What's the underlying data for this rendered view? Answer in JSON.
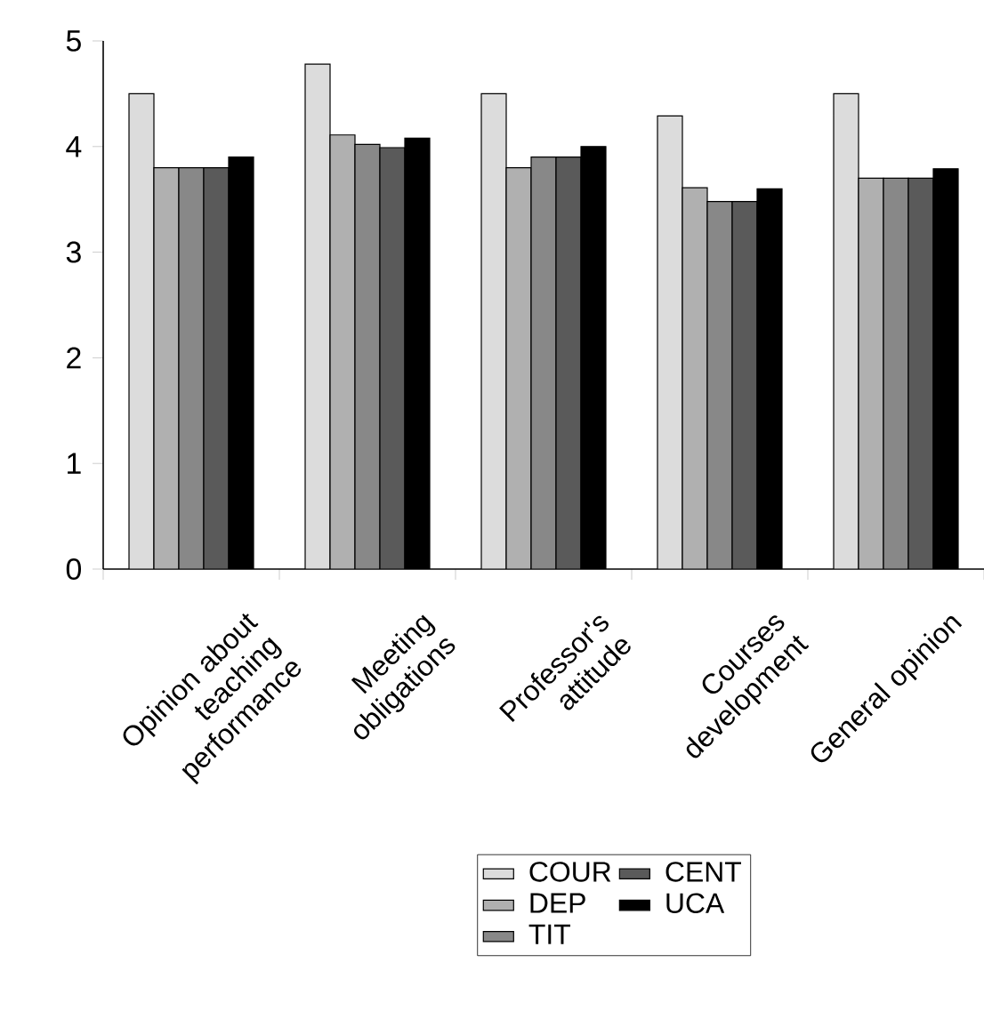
{
  "chart_data": {
    "type": "bar",
    "categories": [
      "Opinion about teaching performance",
      "Meeting obligations",
      "Professor's attitude",
      "Courses development",
      "General opinion"
    ],
    "series": [
      {
        "name": "COUR",
        "color": "#dcdcdc",
        "values": [
          4.5,
          4.78,
          4.5,
          4.29,
          4.5
        ]
      },
      {
        "name": "DEP",
        "color": "#b0b0b0",
        "values": [
          3.8,
          4.11,
          3.8,
          3.61,
          3.7
        ]
      },
      {
        "name": "TIT",
        "color": "#888888",
        "values": [
          3.8,
          4.02,
          3.9,
          3.48,
          3.7
        ]
      },
      {
        "name": "CENT",
        "color": "#5a5a5a",
        "values": [
          3.8,
          3.99,
          3.9,
          3.48,
          3.7
        ]
      },
      {
        "name": "UCA",
        "color": "#000000",
        "values": [
          3.9,
          4.08,
          4.0,
          3.6,
          3.79
        ]
      }
    ],
    "ylim": [
      0,
      5
    ],
    "yticks": [
      0,
      1,
      2,
      3,
      4,
      5
    ],
    "grid": false,
    "legend": "bottom"
  }
}
